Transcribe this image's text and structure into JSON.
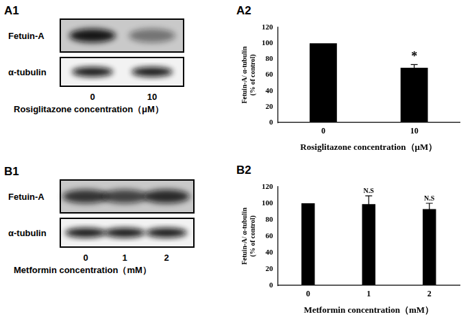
{
  "blots": [
    {
      "panel": "A1",
      "rows": [
        "Fetuin-A",
        "α-tubulin"
      ],
      "lanes": [
        "0",
        "10"
      ],
      "xlabel": "Rosiglitazone concentration（μM）"
    },
    {
      "panel": "B1",
      "rows": [
        "Fetuin-A",
        "α-tubulin"
      ],
      "lanes": [
        "0",
        "1",
        "2"
      ],
      "xlabel": "Metformin concentration（mM）"
    }
  ],
  "chart_data": [
    {
      "panel": "A2",
      "type": "bar",
      "categories": [
        "0",
        "10"
      ],
      "values": [
        100,
        69
      ],
      "errors": [
        null,
        4
      ],
      "annotations": [
        null,
        "*"
      ],
      "color": "#000000",
      "xlabel": "Rosiglitazone concentration（μM）",
      "ylabel": [
        "Fetuin-A/ α-tubulin",
        "(% of control)"
      ],
      "ylim": [
        0,
        120
      ],
      "yticks": [
        0,
        20,
        40,
        60,
        80,
        100,
        120
      ],
      "grid": false
    },
    {
      "panel": "B2",
      "type": "bar",
      "categories": [
        "0",
        "1",
        "2"
      ],
      "values": [
        100,
        99,
        93
      ],
      "errors": [
        null,
        10,
        7
      ],
      "annotations": [
        null,
        "N.S",
        "N.S"
      ],
      "color": "#000000",
      "xlabel": "Metformin concentration（mM）",
      "ylabel": [
        "Fetuin-A/ α-tubulin",
        "(% of control)"
      ],
      "ylim": [
        0,
        120
      ],
      "yticks": [
        0,
        20,
        40,
        60,
        80,
        100,
        120
      ],
      "grid": false
    }
  ]
}
